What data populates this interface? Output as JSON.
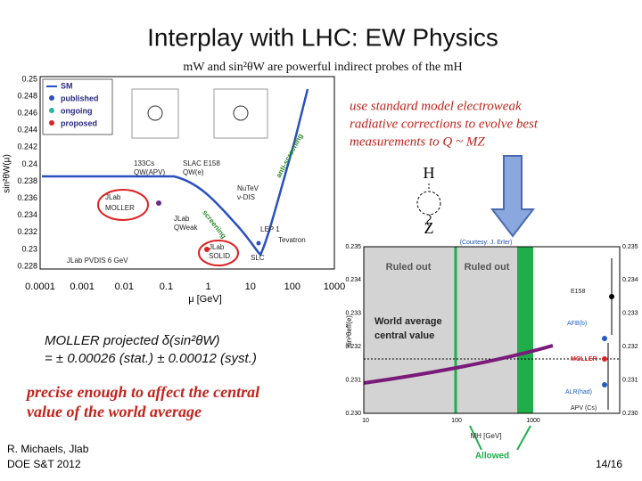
{
  "title": "Interplay with LHC: EW Physics",
  "subtitle": "mW and sin²θW are powerful indirect probes of the mH",
  "left_plot": {
    "y_label": "sin²θW(μ)",
    "x_label": "μ [GeV]",
    "yticks": [
      "0.25",
      "0.248",
      "0.246",
      "0.244",
      "0.242",
      "0.24",
      "0.238",
      "0.236",
      "0.234",
      "0.232",
      "0.23",
      "0.228"
    ],
    "xticks": [
      "0.0001",
      "0.001",
      "0.01",
      "0.1",
      "1",
      "10",
      "100",
      "1000"
    ],
    "legend": [
      "SM",
      "published",
      "ongoing",
      "proposed"
    ],
    "labels": [
      "133Cs",
      "QW(APV)",
      "SLAC E158",
      "QW(e)",
      "NuTeV",
      "ν-DIS",
      "anti-screening",
      "JLab",
      "MOLLER",
      "JLab",
      "QWeak",
      "screening",
      "LEP 1",
      "Tevatron",
      "JLab",
      "SOLID",
      "SLC",
      "JLab PVDIS 6 GeV"
    ]
  },
  "note": [
    "use standard model electroweak",
    "radiative corrections to evolve best",
    "measurements to Q ~ MZ"
  ],
  "diagram": {
    "top": "H",
    "bottom": "Z"
  },
  "right_plot": {
    "y_label": "sin²θeff(e)",
    "yticks": [
      "0.235",
      "0.234",
      "0.233",
      "0.232",
      "0.231",
      "0.230"
    ],
    "xticks": [
      "10",
      "100",
      "1000"
    ],
    "labels": [
      "(Courtesy: J. Erler)",
      "Ruled out",
      "Ruled out",
      "World average",
      "central value",
      "E158",
      "AFB(b)",
      "MOLLER",
      "ALR(had)",
      "APV (Cs)",
      "MH [GeV]",
      "Allowed"
    ]
  },
  "moller": [
    "MOLLER projected δ(sin²θW)",
    "= ± 0.00026 (stat.) ± 0.00012 (syst.)"
  ],
  "conclusion": [
    "precise enough to affect the central",
    "value of the world average"
  ],
  "footer": {
    "author": [
      "R. Michaels, Jlab",
      "DOE S&T 2012"
    ],
    "page": "14/16"
  }
}
